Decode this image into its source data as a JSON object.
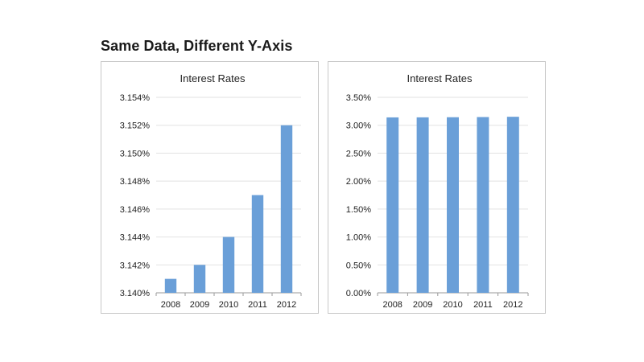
{
  "page": {
    "title": "Same Data, Different Y-Axis"
  },
  "chart_data": [
    {
      "type": "bar",
      "title": "Interest Rates",
      "xlabel": "",
      "ylabel": "",
      "categories": [
        "2008",
        "2009",
        "2010",
        "2011",
        "2012"
      ],
      "values": [
        3.141,
        3.142,
        3.144,
        3.147,
        3.152
      ],
      "unit": "%",
      "ylim": [
        3.14,
        3.154
      ],
      "yticks": [
        "3.140%",
        "3.142%",
        "3.144%",
        "3.146%",
        "3.148%",
        "3.150%",
        "3.152%",
        "3.154%"
      ],
      "ytick_values": [
        3.14,
        3.142,
        3.144,
        3.146,
        3.148,
        3.15,
        3.152,
        3.154
      ],
      "grid": true,
      "legend": "none",
      "bar_color": "#6a9fd8"
    },
    {
      "type": "bar",
      "title": "Interest Rates",
      "xlabel": "",
      "ylabel": "",
      "categories": [
        "2008",
        "2009",
        "2010",
        "2011",
        "2012"
      ],
      "values": [
        3.141,
        3.142,
        3.144,
        3.147,
        3.152
      ],
      "unit": "%",
      "ylim": [
        0.0,
        3.5
      ],
      "yticks": [
        "0.00%",
        "0.50%",
        "1.00%",
        "1.50%",
        "2.00%",
        "2.50%",
        "3.00%",
        "3.50%"
      ],
      "ytick_values": [
        0.0,
        0.5,
        1.0,
        1.5,
        2.0,
        2.5,
        3.0,
        3.5
      ],
      "grid": true,
      "legend": "none",
      "bar_color": "#6a9fd8"
    }
  ]
}
